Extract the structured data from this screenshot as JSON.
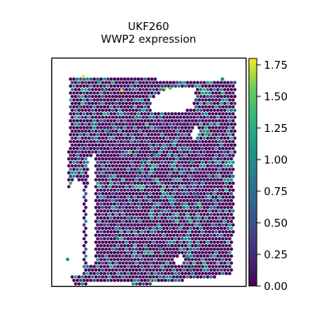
{
  "chart_data": {
    "type": "scatter",
    "title": [
      "UKF260",
      "WWP2 expression"
    ],
    "xlabel": "",
    "ylabel": "",
    "axes_ticks_visible": false,
    "colormap": "viridis",
    "colorbar": {
      "min": 0.0,
      "max": 1.8,
      "ticks": [
        0.0,
        0.25,
        0.5,
        0.75,
        1.0,
        1.25,
        1.5,
        1.75
      ],
      "tick_labels": [
        "0.00",
        "0.25",
        "0.50",
        "0.75",
        "1.00",
        "1.25",
        "1.50",
        "1.75"
      ],
      "placement": "right"
    },
    "tissue_mask": {
      "polygon": [
        [
          0.08,
          0.93
        ],
        [
          0.09,
          0.08
        ],
        [
          0.95,
          0.1
        ],
        [
          0.94,
          0.62
        ],
        [
          0.93,
          0.95
        ],
        [
          0.48,
          0.99
        ],
        [
          0.22,
          0.98
        ],
        [
          0.17,
          0.99
        ],
        [
          0.12,
          1.0
        ]
      ],
      "holes": [
        [
          [
            0.07,
            0.61
          ],
          [
            0.12,
            0.53
          ],
          [
            0.16,
            0.55
          ],
          [
            0.16,
            0.95
          ],
          [
            0.07,
            0.95
          ]
        ],
        [
          [
            0.18,
            0.62
          ],
          [
            0.19,
            0.44
          ],
          [
            0.22,
            0.42
          ],
          [
            0.22,
            0.9
          ],
          [
            0.18,
            0.9
          ]
        ],
        [
          [
            0.5,
            0.18
          ],
          [
            0.6,
            0.13
          ],
          [
            0.74,
            0.13
          ],
          [
            0.73,
            0.22
          ],
          [
            0.6,
            0.24
          ],
          [
            0.52,
            0.23
          ]
        ],
        [
          [
            0.72,
            0.33
          ],
          [
            0.74,
            0.29
          ],
          [
            0.76,
            0.33
          ],
          [
            0.74,
            0.36
          ]
        ],
        [
          [
            0.62,
            0.88
          ],
          [
            0.66,
            0.86
          ],
          [
            0.68,
            0.88
          ],
          [
            0.66,
            0.91
          ]
        ]
      ]
    },
    "highlighted_spots": [
      {
        "x": 0.16,
        "y": 0.08,
        "value": 1.75
      },
      {
        "x": 0.36,
        "y": 0.14,
        "value": 1.7
      },
      {
        "x": 0.58,
        "y": 0.13,
        "value": 1.6
      },
      {
        "x": 0.61,
        "y": 0.13,
        "value": 1.5
      },
      {
        "x": 0.82,
        "y": 0.33,
        "value": 1.5
      },
      {
        "x": 0.51,
        "y": 0.97,
        "value": 1.45
      },
      {
        "x": 0.43,
        "y": 0.26,
        "value": 1.4
      },
      {
        "x": 0.24,
        "y": 0.1,
        "value": 1.2
      },
      {
        "x": 0.27,
        "y": 0.14,
        "value": 1.2
      },
      {
        "x": 0.8,
        "y": 0.33,
        "value": 1.3
      },
      {
        "x": 0.45,
        "y": 0.49,
        "value": 1.2
      },
      {
        "x": 0.47,
        "y": 0.45,
        "value": 1.3
      },
      {
        "x": 0.53,
        "y": 0.42,
        "value": 1.1
      },
      {
        "x": 0.72,
        "y": 0.45,
        "value": 1.3
      },
      {
        "x": 0.75,
        "y": 0.6,
        "value": 1.1
      },
      {
        "x": 0.84,
        "y": 0.62,
        "value": 1.2
      },
      {
        "x": 0.56,
        "y": 0.83,
        "value": 1.1
      },
      {
        "x": 0.72,
        "y": 0.92,
        "value": 1.2
      },
      {
        "x": 0.7,
        "y": 0.87,
        "value": 1.0
      },
      {
        "x": 0.33,
        "y": 0.78,
        "value": 1.1
      },
      {
        "x": 0.4,
        "y": 0.7,
        "value": 1.0
      },
      {
        "x": 0.08,
        "y": 0.88,
        "value": 1.0
      },
      {
        "x": 0.14,
        "y": 0.21,
        "value": 1.1
      },
      {
        "x": 0.29,
        "y": 0.32,
        "value": 0.95
      },
      {
        "x": 0.88,
        "y": 0.09,
        "value": 0.9
      }
    ]
  }
}
